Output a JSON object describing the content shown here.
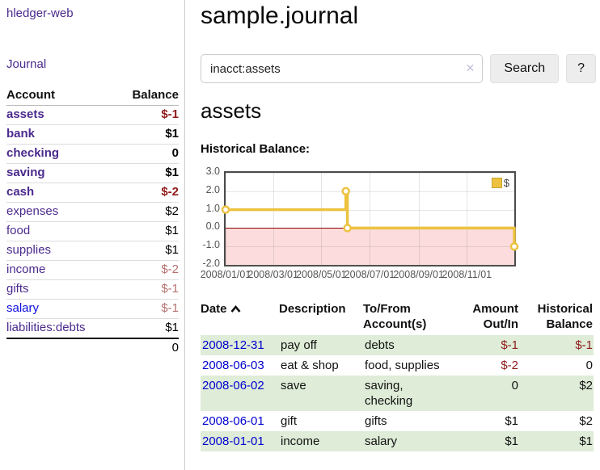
{
  "app": {
    "title": "hledger-web",
    "journal_link": "Journal"
  },
  "sidebar": {
    "headers": {
      "account": "Account",
      "balance": "Balance"
    },
    "accounts": [
      {
        "name": "assets",
        "balance": "$-1",
        "level": 0,
        "bold": true,
        "balance_style": "negative-strong"
      },
      {
        "name": "bank",
        "balance": "$1",
        "level": 1,
        "bold": true,
        "balance_style": "positive"
      },
      {
        "name": "checking",
        "balance": "0",
        "level": 2,
        "bold": true,
        "balance_style": "positive"
      },
      {
        "name": "saving",
        "balance": "$1",
        "level": 2,
        "bold": true,
        "balance_style": "positive"
      },
      {
        "name": "cash",
        "balance": "$-2",
        "level": 1,
        "bold": true,
        "balance_style": "negative-strong"
      },
      {
        "name": "expenses",
        "balance": "$2",
        "level": 0,
        "bold": false,
        "balance_style": "positive"
      },
      {
        "name": "food",
        "balance": "$1",
        "level": 1,
        "bold": false,
        "balance_style": "positive"
      },
      {
        "name": "supplies",
        "balance": "$1",
        "level": 1,
        "bold": false,
        "balance_style": "positive"
      },
      {
        "name": "income",
        "balance": "$-2",
        "level": 0,
        "bold": false,
        "balance_style": "negative-soft"
      },
      {
        "name": "gifts",
        "balance": "$-1",
        "level": 1,
        "bold": false,
        "balance_style": "negative-soft"
      },
      {
        "name": "salary",
        "balance": "$-1",
        "level": 1,
        "bold": false,
        "balance_style": "negative-soft",
        "link_style": "unvisited"
      },
      {
        "name": "liabilities:debts",
        "balance": "$1",
        "level": 0,
        "bold": false,
        "balance_style": "positive"
      }
    ],
    "total": "0"
  },
  "header": {
    "title": "sample.journal"
  },
  "search": {
    "value": "inacct:assets",
    "clear_icon": "✕",
    "search_button": "Search",
    "help_button": "?"
  },
  "account_page": {
    "heading": "assets",
    "chart_title": "Historical Balance:"
  },
  "chart_data": {
    "type": "line",
    "title": "Historical Balance:",
    "series": [
      {
        "name": "$",
        "color": "#EDC240",
        "style": "step",
        "points": [
          {
            "date": "2008-01-01",
            "value": 1
          },
          {
            "date": "2008-06-01",
            "value": 2
          },
          {
            "date": "2008-06-03",
            "value": 0
          },
          {
            "date": "2008-12-31",
            "value": -1
          }
        ]
      }
    ],
    "x_range": [
      "2008-01-01",
      "2008-12-31"
    ],
    "ylim": [
      -2,
      3
    ],
    "x_ticks": [
      "2008/01/01",
      "2008/03/01",
      "2008/05/01",
      "2008/07/01",
      "2008/09/01",
      "2008/11/01"
    ],
    "y_ticks": [
      "3.0",
      "2.0",
      "1.0",
      "0.0",
      "-1.0",
      "-2.0"
    ],
    "grid": true,
    "legend_position": "top-right",
    "zero_line_color": "#8b0000",
    "negative_region_color": "#fcdcdc"
  },
  "register": {
    "headers": {
      "date": "Date",
      "description": "Description",
      "accounts": "To/From Account(s)",
      "amount": "Amount Out/In",
      "balance": "Historical Balance"
    },
    "rows": [
      {
        "date": "2008-12-31",
        "description": "pay off",
        "accounts": "debts",
        "amount": "$-1",
        "balance": "$-1"
      },
      {
        "date": "2008-06-03",
        "description": "eat & shop",
        "accounts": "food, supplies",
        "amount": "$-2",
        "balance": "0"
      },
      {
        "date": "2008-06-02",
        "description": "save",
        "accounts": "saving,\nchecking",
        "amount": "0",
        "balance": "$2"
      },
      {
        "date": "2008-06-01",
        "description": "gift",
        "accounts": "gifts",
        "amount": "$1",
        "balance": "$2"
      },
      {
        "date": "2008-01-01",
        "description": "income",
        "accounts": "salary",
        "amount": "$1",
        "balance": "$1"
      }
    ]
  }
}
